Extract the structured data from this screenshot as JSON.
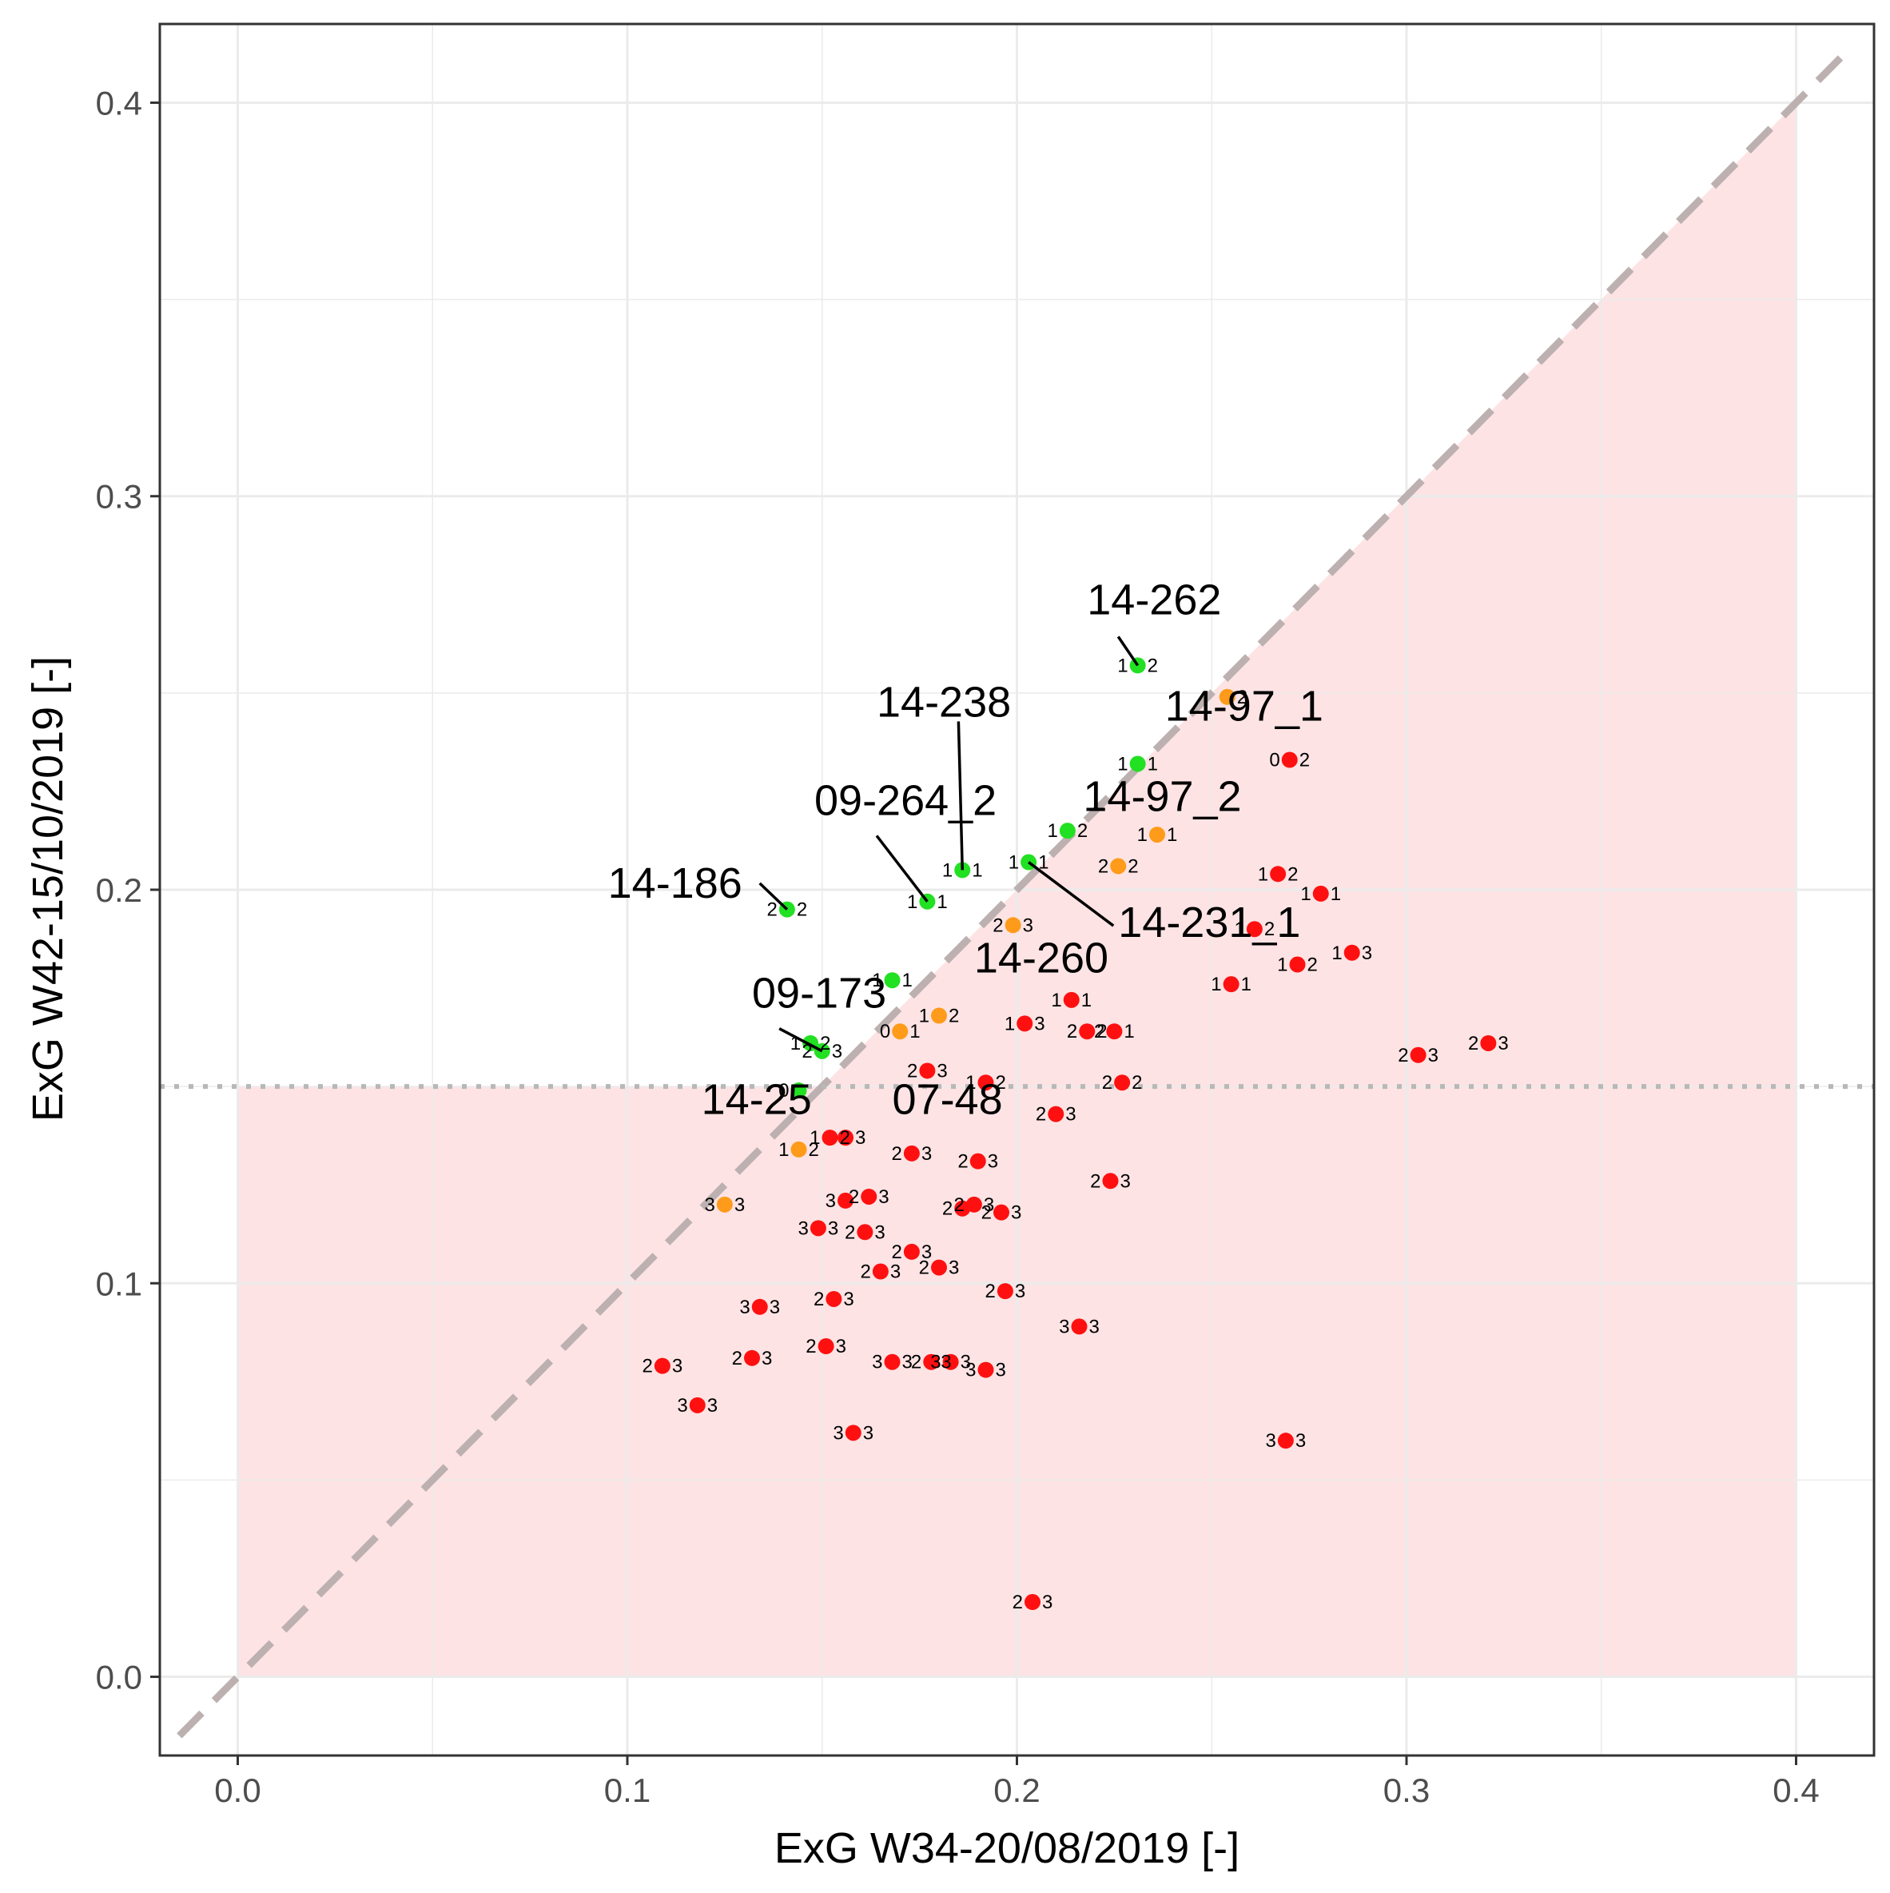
{
  "chart_data": {
    "type": "scatter",
    "title": "",
    "xlabel": "ExG W34-20/08/2019 [-]",
    "ylabel": "ExG W42-15/10/2019 [-]",
    "xlim": [
      -0.02,
      0.42
    ],
    "ylim": [
      -0.02,
      0.42
    ],
    "x_ticks": [
      0.0,
      0.1,
      0.2,
      0.3,
      0.4
    ],
    "y_ticks": [
      0.0,
      0.1,
      0.2,
      0.3,
      0.4
    ],
    "x_tick_labels": [
      "0.0",
      "0.1",
      "0.2",
      "0.3",
      "0.4"
    ],
    "y_tick_labels": [
      "0.0",
      "0.1",
      "0.2",
      "0.3",
      "0.4"
    ],
    "grid": true,
    "threshold_y": 0.15,
    "diagonal": "y = x",
    "colors": {
      "green": "#22e022",
      "orange": "#ff9b1a",
      "red": "#ff1010",
      "shade": "#fde3e4",
      "grid": "#ebebeb",
      "ref_line": "#bcb0b0"
    },
    "points": [
      {
        "x": 0.231,
        "y": 0.257,
        "c": "green",
        "a": "1",
        "b": "2"
      },
      {
        "x": 0.254,
        "y": 0.249,
        "c": "orange",
        "a": "",
        "b": "2"
      },
      {
        "x": 0.231,
        "y": 0.232,
        "c": "green",
        "a": "1",
        "b": "1"
      },
      {
        "x": 0.27,
        "y": 0.233,
        "c": "red",
        "a": "0",
        "b": "2"
      },
      {
        "x": 0.213,
        "y": 0.215,
        "c": "green",
        "a": "1",
        "b": "2"
      },
      {
        "x": 0.236,
        "y": 0.214,
        "c": "orange",
        "a": "1",
        "b": "1"
      },
      {
        "x": 0.203,
        "y": 0.207,
        "c": "green",
        "a": "1",
        "b": "1"
      },
      {
        "x": 0.226,
        "y": 0.206,
        "c": "orange",
        "a": "2",
        "b": "2"
      },
      {
        "x": 0.186,
        "y": 0.205,
        "c": "green",
        "a": "1",
        "b": "1"
      },
      {
        "x": 0.267,
        "y": 0.204,
        "c": "red",
        "a": "1",
        "b": "2"
      },
      {
        "x": 0.278,
        "y": 0.199,
        "c": "red",
        "a": "1",
        "b": "1"
      },
      {
        "x": 0.177,
        "y": 0.197,
        "c": "green",
        "a": "1",
        "b": "1"
      },
      {
        "x": 0.141,
        "y": 0.195,
        "c": "green",
        "a": "2",
        "b": "2"
      },
      {
        "x": 0.199,
        "y": 0.191,
        "c": "orange",
        "a": "2",
        "b": "3"
      },
      {
        "x": 0.261,
        "y": 0.19,
        "c": "red",
        "a": "1",
        "b": "2"
      },
      {
        "x": 0.286,
        "y": 0.184,
        "c": "red",
        "a": "1",
        "b": "3"
      },
      {
        "x": 0.272,
        "y": 0.181,
        "c": "red",
        "a": "1",
        "b": "2"
      },
      {
        "x": 0.168,
        "y": 0.177,
        "c": "green",
        "a": "1",
        "b": "1"
      },
      {
        "x": 0.255,
        "y": 0.176,
        "c": "red",
        "a": "1",
        "b": "1"
      },
      {
        "x": 0.214,
        "y": 0.172,
        "c": "red",
        "a": "1",
        "b": "1"
      },
      {
        "x": 0.18,
        "y": 0.168,
        "c": "orange",
        "a": "1",
        "b": "2"
      },
      {
        "x": 0.202,
        "y": 0.166,
        "c": "red",
        "a": "1",
        "b": "3"
      },
      {
        "x": 0.17,
        "y": 0.164,
        "c": "orange",
        "a": "0",
        "b": "1"
      },
      {
        "x": 0.218,
        "y": 0.164,
        "c": "red",
        "a": "2",
        "b": "2"
      },
      {
        "x": 0.225,
        "y": 0.164,
        "c": "red",
        "a": "2",
        "b": "1"
      },
      {
        "x": 0.321,
        "y": 0.161,
        "c": "red",
        "a": "2",
        "b": "3"
      },
      {
        "x": 0.147,
        "y": 0.161,
        "c": "green",
        "a": "1",
        "b": "2"
      },
      {
        "x": 0.15,
        "y": 0.159,
        "c": "green",
        "a": "2",
        "b": "3"
      },
      {
        "x": 0.303,
        "y": 0.158,
        "c": "red",
        "a": "2",
        "b": "3"
      },
      {
        "x": 0.177,
        "y": 0.154,
        "c": "red",
        "a": "2",
        "b": "3"
      },
      {
        "x": 0.192,
        "y": 0.151,
        "c": "red",
        "a": "1",
        "b": "2"
      },
      {
        "x": 0.227,
        "y": 0.151,
        "c": "red",
        "a": "2",
        "b": "2"
      },
      {
        "x": 0.144,
        "y": 0.149,
        "c": "green",
        "a": "0",
        "b": ""
      },
      {
        "x": 0.21,
        "y": 0.143,
        "c": "red",
        "a": "2",
        "b": "3"
      },
      {
        "x": 0.152,
        "y": 0.137,
        "c": "red",
        "a": "1",
        "b": "2"
      },
      {
        "x": 0.156,
        "y": 0.137,
        "c": "red",
        "a": "",
        "b": "3"
      },
      {
        "x": 0.144,
        "y": 0.134,
        "c": "orange",
        "a": "1",
        "b": "2"
      },
      {
        "x": 0.173,
        "y": 0.133,
        "c": "red",
        "a": "2",
        "b": "3"
      },
      {
        "x": 0.19,
        "y": 0.131,
        "c": "red",
        "a": "2",
        "b": "3"
      },
      {
        "x": 0.224,
        "y": 0.126,
        "c": "red",
        "a": "2",
        "b": "3"
      },
      {
        "x": 0.156,
        "y": 0.121,
        "c": "red",
        "a": "3",
        "b": ""
      },
      {
        "x": 0.162,
        "y": 0.122,
        "c": "red",
        "a": "2",
        "b": "3"
      },
      {
        "x": 0.125,
        "y": 0.12,
        "c": "orange",
        "a": "3",
        "b": "3"
      },
      {
        "x": 0.189,
        "y": 0.12,
        "c": "red",
        "a": "2",
        "b": "3"
      },
      {
        "x": 0.186,
        "y": 0.119,
        "c": "red",
        "a": "2",
        "b": ""
      },
      {
        "x": 0.196,
        "y": 0.118,
        "c": "red",
        "a": "2",
        "b": "3"
      },
      {
        "x": 0.149,
        "y": 0.114,
        "c": "red",
        "a": "3",
        "b": "3"
      },
      {
        "x": 0.161,
        "y": 0.113,
        "c": "red",
        "a": "2",
        "b": "3"
      },
      {
        "x": 0.173,
        "y": 0.108,
        "c": "red",
        "a": "2",
        "b": "3"
      },
      {
        "x": 0.18,
        "y": 0.104,
        "c": "red",
        "a": "2",
        "b": "3"
      },
      {
        "x": 0.165,
        "y": 0.103,
        "c": "red",
        "a": "2",
        "b": "3"
      },
      {
        "x": 0.197,
        "y": 0.098,
        "c": "red",
        "a": "2",
        "b": "3"
      },
      {
        "x": 0.153,
        "y": 0.096,
        "c": "red",
        "a": "2",
        "b": "3"
      },
      {
        "x": 0.134,
        "y": 0.094,
        "c": "red",
        "a": "3",
        "b": "3"
      },
      {
        "x": 0.216,
        "y": 0.089,
        "c": "red",
        "a": "3",
        "b": "3"
      },
      {
        "x": 0.151,
        "y": 0.084,
        "c": "red",
        "a": "2",
        "b": "3"
      },
      {
        "x": 0.132,
        "y": 0.081,
        "c": "red",
        "a": "2",
        "b": "3"
      },
      {
        "x": 0.168,
        "y": 0.08,
        "c": "red",
        "a": "3",
        "b": "3"
      },
      {
        "x": 0.178,
        "y": 0.08,
        "c": "red",
        "a": "2",
        "b": "3"
      },
      {
        "x": 0.183,
        "y": 0.08,
        "c": "red",
        "a": "3",
        "b": "3"
      },
      {
        "x": 0.109,
        "y": 0.079,
        "c": "red",
        "a": "2",
        "b": "3"
      },
      {
        "x": 0.192,
        "y": 0.078,
        "c": "red",
        "a": "3",
        "b": "3"
      },
      {
        "x": 0.118,
        "y": 0.069,
        "c": "red",
        "a": "3",
        "b": "3"
      },
      {
        "x": 0.158,
        "y": 0.062,
        "c": "red",
        "a": "3",
        "b": "3"
      },
      {
        "x": 0.269,
        "y": 0.06,
        "c": "red",
        "a": "3",
        "b": "3"
      },
      {
        "x": 0.204,
        "y": 0.019,
        "c": "red",
        "a": "2",
        "b": "3"
      }
    ],
    "annotations": [
      {
        "text": "14-262",
        "tx": 0.218,
        "ty": 0.27,
        "px": 0.231,
        "py": 0.257
      },
      {
        "text": "14-238",
        "tx": 0.164,
        "ty": 0.244,
        "px": 0.186,
        "py": 0.205
      },
      {
        "text": "14-97_1",
        "tx": 0.238,
        "ty": 0.243,
        "px": null,
        "py": null
      },
      {
        "text": "14-97_2",
        "tx": 0.217,
        "ty": 0.22,
        "px": null,
        "py": null
      },
      {
        "text": "09-264_2",
        "tx": 0.148,
        "ty": 0.219,
        "px": 0.177,
        "py": 0.197
      },
      {
        "text": "14-186",
        "tx": 0.095,
        "ty": 0.198,
        "px": 0.141,
        "py": 0.195
      },
      {
        "text": "14-231_1",
        "tx": 0.226,
        "ty": 0.188,
        "px": 0.203,
        "py": 0.207
      },
      {
        "text": "14-260",
        "tx": 0.189,
        "ty": 0.179,
        "px": null,
        "py": null
      },
      {
        "text": "09-173",
        "tx": 0.132,
        "ty": 0.17,
        "px": 0.15,
        "py": 0.159
      },
      {
        "text": "14-25",
        "tx": 0.119,
        "ty": 0.143,
        "px": null,
        "py": null
      },
      {
        "text": "07-48",
        "tx": 0.168,
        "ty": 0.143,
        "px": null,
        "py": null
      }
    ]
  }
}
